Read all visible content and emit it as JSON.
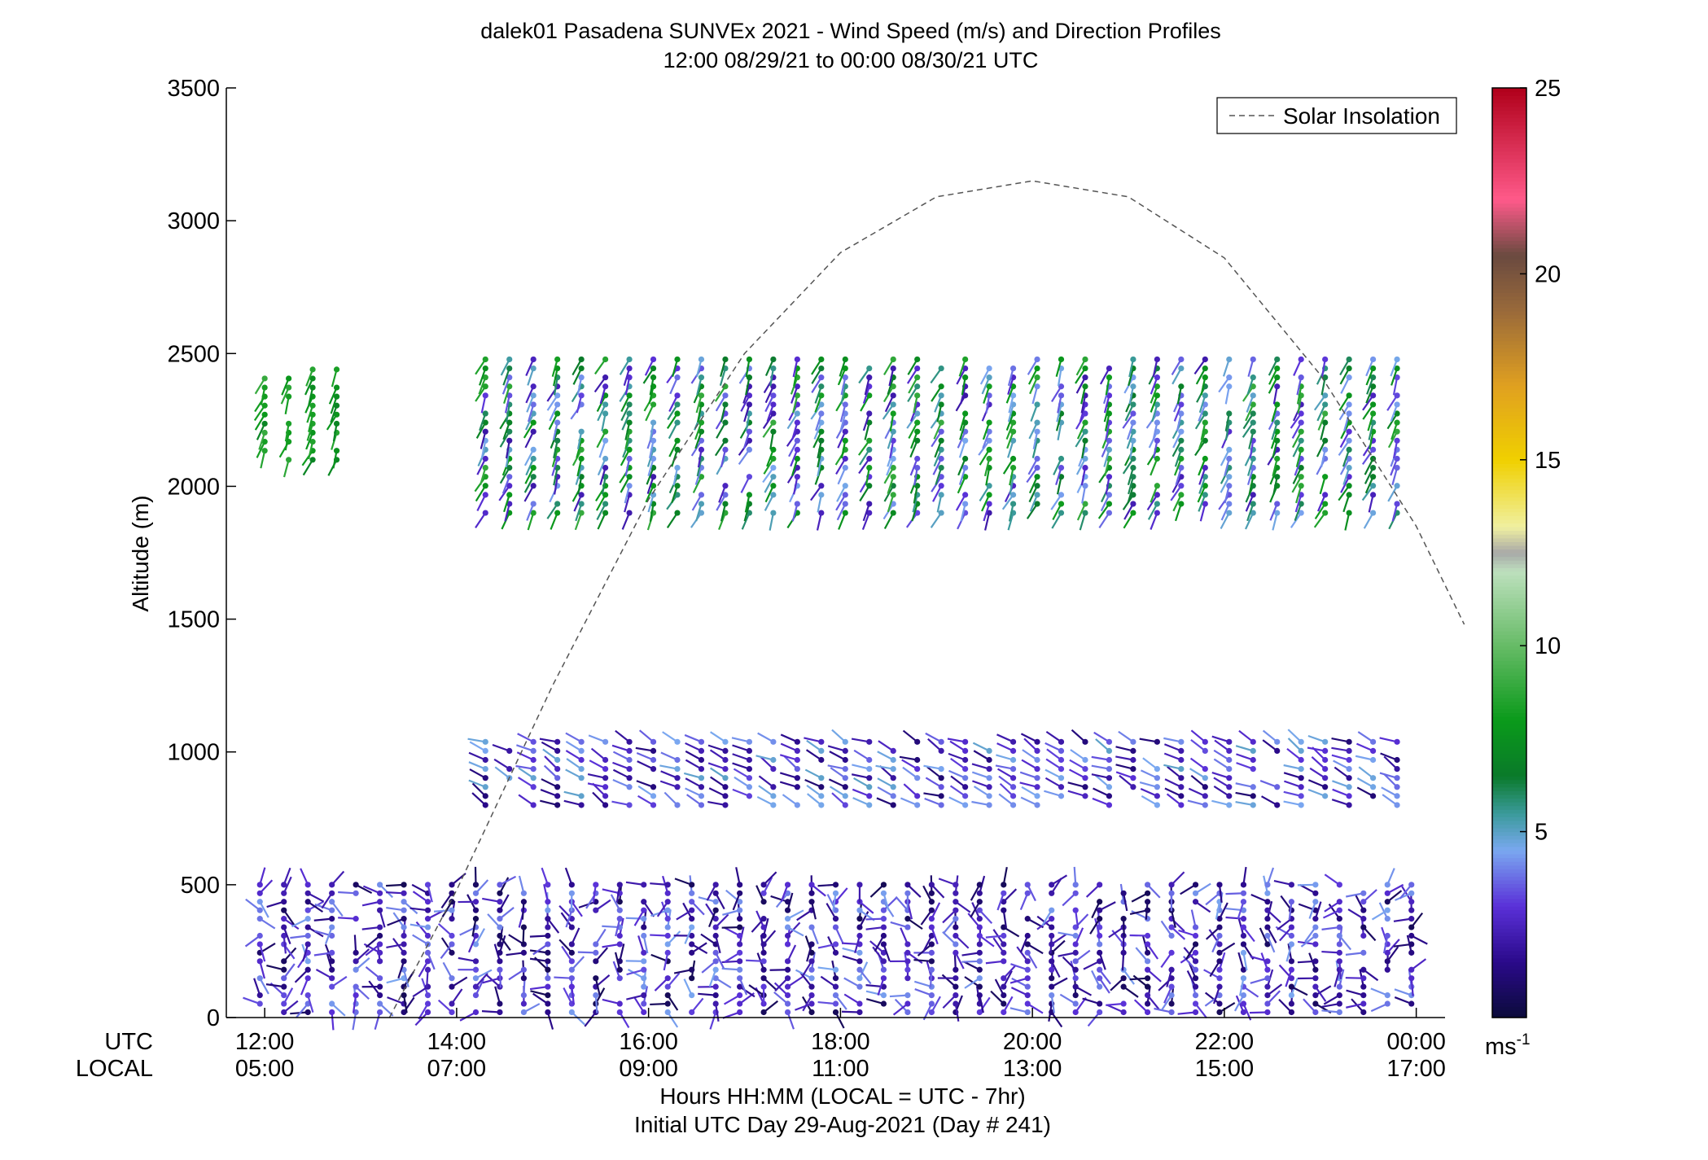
{
  "chart_data": {
    "type": "wind-profile",
    "title": "dalek01 Pasadena SUNVEx 2021 - Wind Speed (m/s) and Direction Profiles",
    "subtitle": "12:00 08/29/21 to 00:00 08/30/21  UTC",
    "ylabel": "Altitude (m)",
    "ylim": [
      0,
      3500
    ],
    "yticks": [
      "0",
      "500",
      "1000",
      "1500",
      "2000",
      "2500",
      "3000",
      "3500"
    ],
    "xlim_hours": [
      11.6,
      24.3
    ],
    "x_row_labels": [
      "UTC",
      "LOCAL"
    ],
    "xticks_utc": [
      "12:00",
      "14:00",
      "16:00",
      "18:00",
      "20:00",
      "22:00",
      "00:00"
    ],
    "xticks_local": [
      "05:00",
      "07:00",
      "09:00",
      "11:00",
      "13:00",
      "15:00",
      "17:00"
    ],
    "xlabel": "Hours HH:MM  (LOCAL = UTC - 7hr)",
    "xlabel2": "Initial UTC Day 29-Aug-2021 (Day # 241)",
    "legend": "Solar Insolation",
    "legend_position": "top-right",
    "colorbar": {
      "min": 0,
      "max": 25,
      "ticks": [
        "5",
        "10",
        "15",
        "20",
        "25"
      ],
      "units_label": "ms",
      "units_exp": "-1"
    },
    "solar_insolation": {
      "style": "dashed",
      "peak_time_utc": "20:00",
      "peak_altitude_m": 3150,
      "hours": [
        13.3,
        14.0,
        15.0,
        16.0,
        17.0,
        18.0,
        19.0,
        20.0,
        21.0,
        22.0,
        23.0,
        24.0,
        24.5
      ],
      "altitude_m": [
        0,
        480,
        1250,
        1950,
        2500,
        2880,
        3090,
        3150,
        3090,
        2860,
        2420,
        1850,
        1480
      ]
    },
    "wind_layers": [
      {
        "name": "low",
        "t_start": 11.95,
        "t_end": 24.0,
        "z_min": 20,
        "z_max": 520,
        "speed_min": 0.5,
        "speed_max": 4.5,
        "direction": "variable"
      },
      {
        "name": "mid",
        "t_start": 14.3,
        "t_end": 24.0,
        "z_min": 800,
        "z_max": 1050,
        "speed_min": 1.0,
        "speed_max": 5.0,
        "direction": "westerly"
      },
      {
        "name": "upper",
        "t_start": 14.3,
        "t_end": 24.0,
        "z_min": 1900,
        "z_max": 2500,
        "speed_min": 2.0,
        "speed_max": 9.0,
        "direction": "southwesterly"
      },
      {
        "name": "early-upper",
        "t_start": 12.0,
        "t_end": 12.8,
        "z_min": 2100,
        "z_max": 2450,
        "speed_min": 7.0,
        "speed_max": 9.0,
        "direction": "southwesterly"
      }
    ]
  }
}
